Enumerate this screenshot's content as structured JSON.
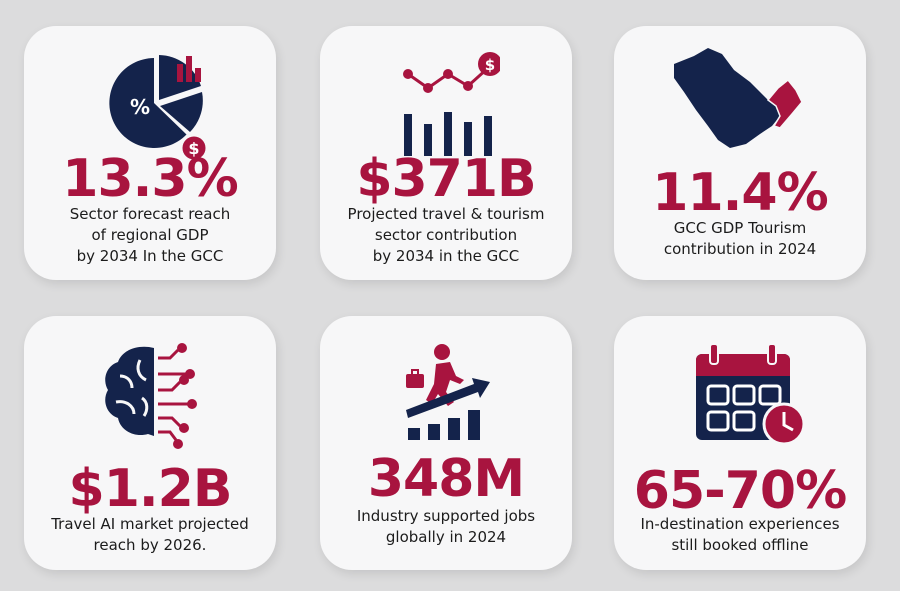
{
  "colors": {
    "navy": "#14234b",
    "crimson": "#a8143f",
    "card": "#f7f7f8",
    "background": "#dcdcdd",
    "text": "#1c1c1c"
  },
  "cards": [
    {
      "icon": "pie-chart-dollar-icon",
      "stat": "13.3%",
      "description": "Sector forecast reach\nof regional GDP\nby 2034 In the GCC"
    },
    {
      "icon": "bar-chart-growth-icon",
      "stat": "$371B",
      "description": "Projected travel & tourism\nsector contribution\nby 2034 in the GCC"
    },
    {
      "icon": "gcc-map-icon",
      "stat": "11.4%",
      "description": "GCC GDP Tourism\ncontribution in 2024"
    },
    {
      "icon": "ai-brain-icon",
      "stat": "$1.2B",
      "description": "Travel AI market projected\nreach by 2026."
    },
    {
      "icon": "traveler-climbing-growth-icon",
      "stat": "348M",
      "description": "Industry supported jobs\nglobally in 2024"
    },
    {
      "icon": "calendar-clock-icon",
      "stat": "65-70%",
      "description": "In-destination experiences\nstill booked offline"
    }
  ]
}
